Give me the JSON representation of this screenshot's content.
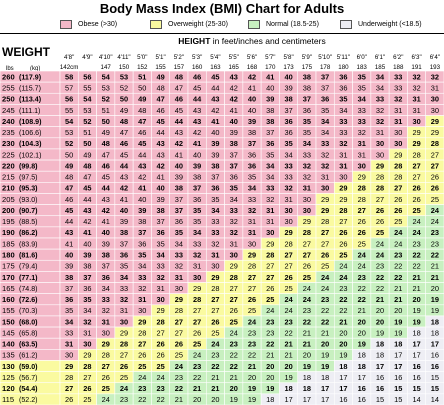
{
  "title": "Body Mass Index (BMI) Chart for Adults",
  "legend": [
    {
      "label": "Obese (>30)",
      "color": "#f4b8c8"
    },
    {
      "label": "Overweight (25-30)",
      "color": "#fafaa0"
    },
    {
      "label": "Normal (18.5-25)",
      "color": "#c8f0c0"
    },
    {
      "label": "Underweight (<18.5)",
      "color": "#eeeef4"
    }
  ],
  "height_header_bold": "HEIGHT",
  "height_header_rest": "in feet/inches and centimeters",
  "weight_header": "WEIGHT",
  "lbs_label": "lbs",
  "kg_label": "(kg)",
  "chart_data": {
    "type": "table",
    "title": "Body Mass Index (BMI) Chart for Adults",
    "heights_ft": [
      "4'8\"",
      "4'9\"",
      "4'10\"",
      "4'11\"",
      "5'0\"",
      "5'1\"",
      "5'2\"",
      "5'3\"",
      "5'4\"",
      "5'5\"",
      "5'6\"",
      "5'7\"",
      "5'8\"",
      "5'9\"",
      "5'10\"",
      "5'11\"",
      "6'0\"",
      "6'1\"",
      "6'2\"",
      "6'3\"",
      "6'4\""
    ],
    "heights_cm": [
      "142cm",
      "",
      "147",
      "150",
      "152",
      "155",
      "157",
      "160",
      "163",
      "165",
      "168",
      "170",
      "173",
      "175",
      "178",
      "180",
      "183",
      "185",
      "188",
      "191",
      "193"
    ],
    "weights_lbs": [
      "260",
      "255",
      "250",
      "245",
      "240",
      "235",
      "230",
      "225",
      "220",
      "215",
      "210",
      "205",
      "200",
      "195",
      "190",
      "185",
      "180",
      "175",
      "170",
      "165",
      "160",
      "155",
      "150",
      "145",
      "140",
      "135",
      "130",
      "125",
      "120",
      "115"
    ],
    "weights_kg": [
      "(117.9)",
      "(115.7)",
      "(113.4)",
      "(111.1)",
      "(108.9)",
      "(106.6)",
      "(104.3)",
      "(102.1)",
      "(99.8)",
      "(97.5)",
      "(95.3)",
      "(93.0)",
      "(90.7)",
      "(88.5)",
      "(86.2)",
      "(83.9)",
      "(81.6)",
      "(79.4)",
      "(77.1)",
      "(74.8)",
      "(72.6)",
      "(70.3)",
      "(68.0)",
      "(65.8)",
      "(63.5)",
      "(61.2)",
      "(59.0)",
      "(56.7)",
      "(54.4)",
      "(52.2)"
    ],
    "bmi_values": [
      [
        58,
        56,
        54,
        53,
        51,
        49,
        48,
        46,
        45,
        43,
        42,
        41,
        40,
        38,
        37,
        36,
        35,
        34,
        33,
        32,
        32
      ],
      [
        57,
        55,
        53,
        52,
        50,
        48,
        47,
        45,
        44,
        42,
        41,
        40,
        39,
        38,
        37,
        36,
        35,
        34,
        33,
        32,
        31
      ],
      [
        56,
        54,
        52,
        50,
        49,
        47,
        46,
        44,
        43,
        42,
        40,
        39,
        38,
        37,
        36,
        35,
        34,
        33,
        32,
        31,
        30
      ],
      [
        55,
        53,
        51,
        49,
        48,
        46,
        45,
        43,
        42,
        41,
        40,
        38,
        37,
        36,
        35,
        34,
        33,
        32,
        31,
        31,
        30
      ],
      [
        54,
        52,
        50,
        48,
        47,
        45,
        44,
        43,
        41,
        40,
        39,
        38,
        36,
        35,
        34,
        33,
        33,
        32,
        31,
        30,
        29
      ],
      [
        53,
        51,
        49,
        47,
        46,
        44,
        43,
        42,
        40,
        39,
        38,
        37,
        36,
        35,
        34,
        33,
        32,
        31,
        30,
        29,
        29
      ],
      [
        52,
        50,
        48,
        46,
        45,
        43,
        42,
        41,
        39,
        38,
        37,
        36,
        35,
        34,
        33,
        32,
        31,
        30,
        30,
        29,
        28
      ],
      [
        50,
        49,
        47,
        45,
        44,
        43,
        41,
        40,
        39,
        37,
        36,
        35,
        34,
        33,
        32,
        31,
        31,
        30,
        29,
        28,
        27
      ],
      [
        49,
        48,
        46,
        44,
        43,
        42,
        40,
        39,
        38,
        37,
        36,
        34,
        33,
        32,
        32,
        31,
        30,
        29,
        28,
        27,
        27
      ],
      [
        48,
        47,
        45,
        43,
        42,
        41,
        39,
        38,
        37,
        36,
        35,
        34,
        33,
        32,
        31,
        30,
        29,
        28,
        28,
        27,
        26
      ],
      [
        47,
        45,
        44,
        42,
        41,
        40,
        38,
        37,
        36,
        35,
        34,
        33,
        32,
        31,
        30,
        29,
        28,
        28,
        27,
        26,
        26
      ],
      [
        46,
        44,
        43,
        41,
        40,
        39,
        37,
        36,
        35,
        34,
        33,
        32,
        31,
        30,
        29,
        29,
        28,
        27,
        26,
        26,
        25
      ],
      [
        45,
        43,
        42,
        40,
        39,
        38,
        37,
        35,
        34,
        33,
        32,
        31,
        30,
        30,
        29,
        28,
        27,
        26,
        26,
        25,
        24
      ],
      [
        44,
        42,
        41,
        39,
        38,
        37,
        36,
        35,
        33,
        32,
        31,
        31,
        30,
        29,
        28,
        27,
        26,
        26,
        25,
        24,
        24
      ],
      [
        43,
        41,
        40,
        38,
        37,
        36,
        35,
        34,
        33,
        32,
        31,
        30,
        29,
        28,
        27,
        26,
        26,
        25,
        24,
        24,
        23
      ],
      [
        41,
        40,
        39,
        37,
        36,
        35,
        34,
        33,
        32,
        31,
        30,
        29,
        28,
        27,
        27,
        26,
        25,
        24,
        24,
        23,
        23
      ],
      [
        40,
        39,
        38,
        36,
        35,
        34,
        33,
        32,
        31,
        30,
        29,
        28,
        27,
        27,
        26,
        25,
        24,
        24,
        23,
        22,
        22
      ],
      [
        39,
        38,
        37,
        35,
        34,
        33,
        32,
        31,
        30,
        29,
        28,
        27,
        27,
        26,
        25,
        24,
        24,
        23,
        22,
        22,
        21
      ],
      [
        38,
        37,
        36,
        34,
        33,
        32,
        31,
        30,
        29,
        28,
        27,
        27,
        26,
        25,
        24,
        24,
        23,
        22,
        22,
        21,
        21
      ],
      [
        37,
        36,
        34,
        33,
        32,
        31,
        30,
        29,
        28,
        27,
        27,
        26,
        25,
        24,
        24,
        23,
        22,
        22,
        21,
        21,
        20
      ],
      [
        36,
        35,
        33,
        32,
        31,
        30,
        29,
        28,
        27,
        27,
        26,
        25,
        24,
        24,
        23,
        22,
        22,
        21,
        21,
        20,
        19
      ],
      [
        35,
        34,
        32,
        31,
        30,
        29,
        28,
        27,
        27,
        26,
        25,
        24,
        24,
        23,
        22,
        22,
        21,
        20,
        20,
        19,
        19
      ],
      [
        34,
        32,
        31,
        30,
        29,
        28,
        27,
        27,
        26,
        25,
        24,
        23,
        23,
        22,
        22,
        21,
        20,
        20,
        19,
        19,
        18
      ],
      [
        33,
        31,
        30,
        29,
        28,
        27,
        27,
        26,
        25,
        24,
        23,
        23,
        22,
        21,
        21,
        20,
        20,
        19,
        19,
        18,
        18
      ],
      [
        31,
        30,
        29,
        28,
        27,
        26,
        26,
        25,
        24,
        23,
        23,
        22,
        21,
        21,
        20,
        20,
        19,
        18,
        18,
        17,
        17
      ],
      [
        30,
        29,
        28,
        27,
        26,
        26,
        25,
        24,
        23,
        22,
        22,
        21,
        21,
        20,
        19,
        19,
        18,
        18,
        17,
        17,
        16
      ],
      [
        29,
        28,
        27,
        26,
        25,
        25,
        24,
        23,
        22,
        22,
        21,
        20,
        20,
        19,
        19,
        18,
        18,
        17,
        17,
        16,
        16
      ],
      [
        28,
        27,
        26,
        25,
        24,
        24,
        23,
        22,
        21,
        21,
        20,
        20,
        19,
        18,
        18,
        17,
        17,
        16,
        16,
        16,
        15
      ],
      [
        27,
        26,
        25,
        24,
        23,
        23,
        22,
        21,
        21,
        20,
        19,
        19,
        18,
        18,
        17,
        17,
        16,
        16,
        15,
        15,
        15
      ],
      [
        26,
        25,
        24,
        23,
        22,
        22,
        21,
        20,
        20,
        19,
        19,
        18,
        17,
        17,
        17,
        16,
        16,
        15,
        15,
        14,
        14
      ]
    ],
    "categories": [
      {
        "name": "Obese (>30)",
        "rule": "bmi >= 30",
        "color": "#f4b8c8"
      },
      {
        "name": "Overweight (25-30)",
        "rule": "25 <= bmi < 30",
        "color": "#fafaa0"
      },
      {
        "name": "Normal (18.5-25)",
        "rule": "18.5 <= bmi < 25",
        "color": "#c8f0c0"
      },
      {
        "name": "Underweight (<18.5)",
        "rule": "bmi < 18.5",
        "color": "#eeeef4"
      }
    ]
  }
}
